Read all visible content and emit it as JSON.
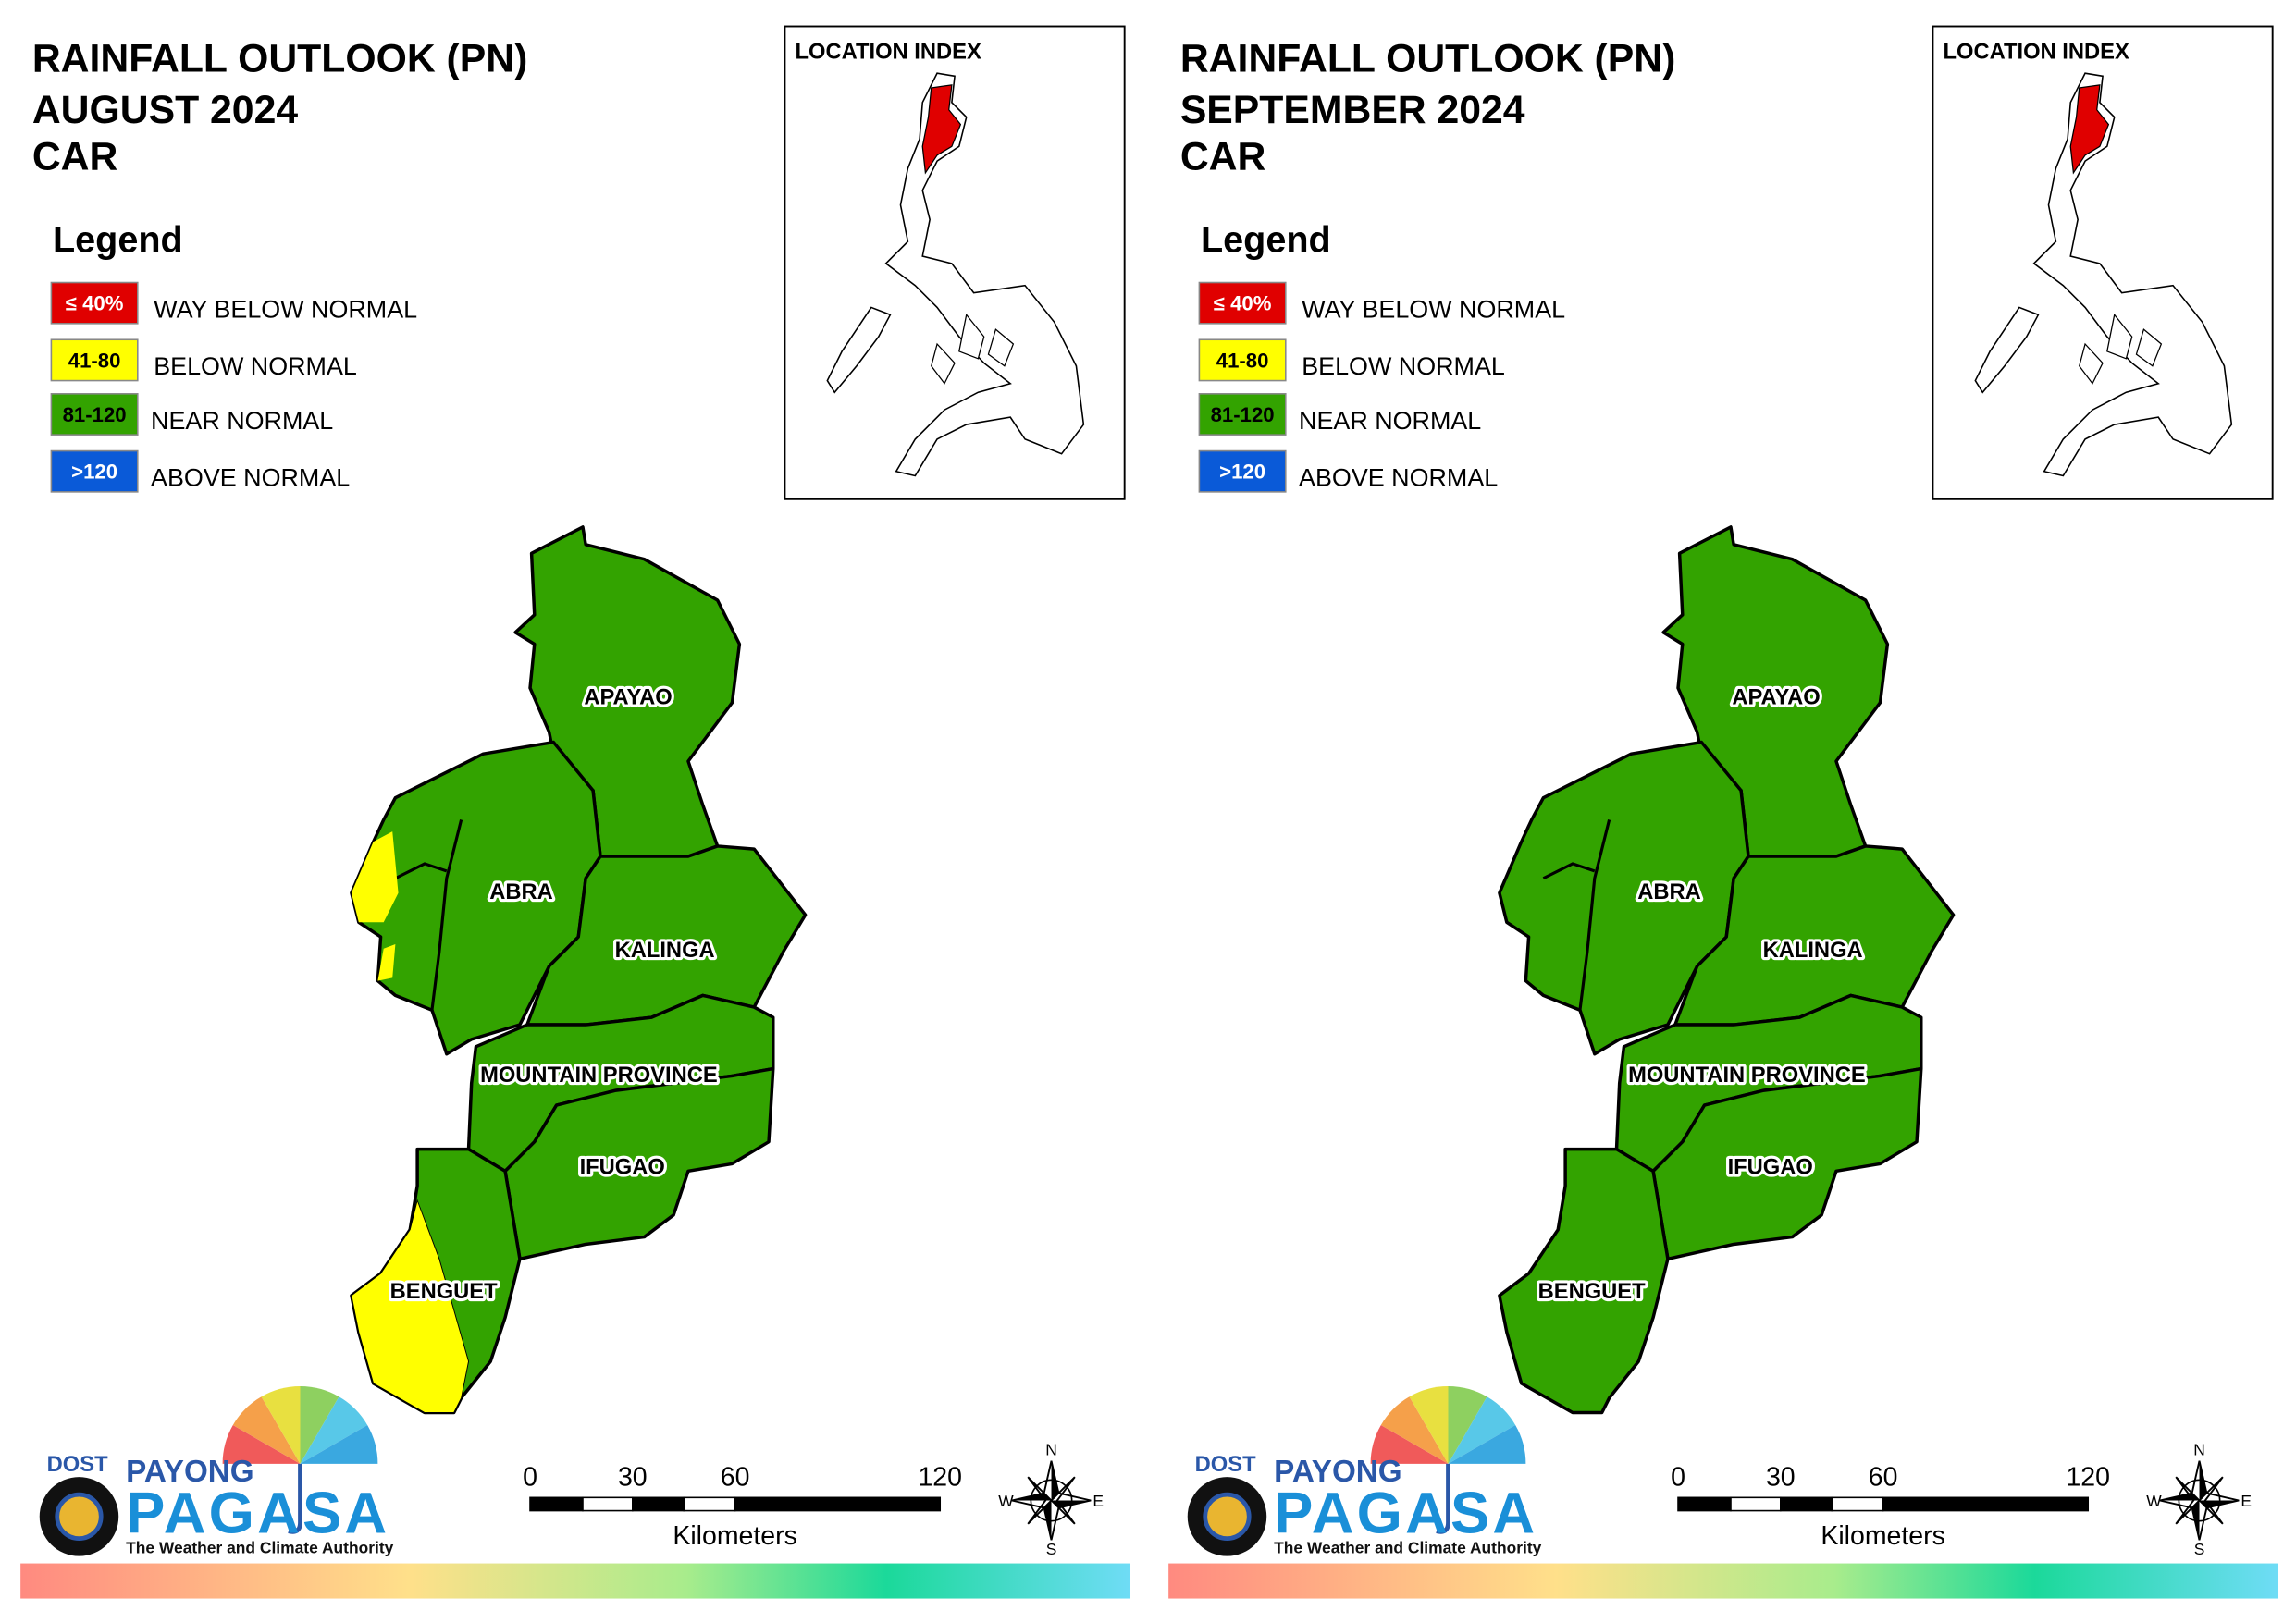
{
  "panels": [
    {
      "title": [
        "RAINFALL OUTLOOK (PN)",
        "AUGUST 2024",
        "CAR"
      ],
      "legend": {
        "title": "Legend",
        "items": [
          {
            "range": "≤ 40%",
            "label": "WAY BELOW NORMAL",
            "color": "#e00000",
            "text_color": "#ffffff"
          },
          {
            "range": "41-80",
            "label": "BELOW NORMAL",
            "color": "#ffff00",
            "text_color": "#000000"
          },
          {
            "range": "81-120",
            "label": "NEAR NORMAL",
            "color": "#33a300",
            "text_color": "#000000"
          },
          {
            "range": ">120",
            "label": "ABOVE NORMAL",
            "color": "#0a5ad8",
            "text_color": "#ffffff"
          }
        ]
      },
      "location_index": "LOCATION INDEX",
      "provinces": [
        "APAYAO",
        "ABRA",
        "KALINGA",
        "MOUNTAIN PROVINCE",
        "IFUGAO",
        "BENGUET"
      ],
      "scale": {
        "ticks": [
          0,
          30,
          60,
          120
        ],
        "unit": "Kilometers"
      },
      "compass": [
        "N",
        "E",
        "S",
        "W"
      ],
      "logo": {
        "agency": "DOST",
        "program": "PAYONG",
        "name": "PAGASA",
        "tagline": "The Weather and Climate Authority"
      }
    },
    {
      "title": [
        "RAINFALL OUTLOOK (PN)",
        "SEPTEMBER 2024",
        "CAR"
      ],
      "legend": {
        "title": "Legend",
        "items": [
          {
            "range": "≤ 40%",
            "label": "WAY BELOW NORMAL",
            "color": "#e00000",
            "text_color": "#ffffff"
          },
          {
            "range": "41-80",
            "label": "BELOW NORMAL",
            "color": "#ffff00",
            "text_color": "#000000"
          },
          {
            "range": "81-120",
            "label": "NEAR NORMAL",
            "color": "#33a300",
            "text_color": "#000000"
          },
          {
            "range": ">120",
            "label": "ABOVE NORMAL",
            "color": "#0a5ad8",
            "text_color": "#ffffff"
          }
        ]
      },
      "location_index": "LOCATION INDEX",
      "provinces": [
        "APAYAO",
        "ABRA",
        "KALINGA",
        "MOUNTAIN PROVINCE",
        "IFUGAO",
        "BENGUET"
      ],
      "scale": {
        "ticks": [
          0,
          30,
          60,
          120
        ],
        "unit": "Kilometers"
      },
      "compass": [
        "N",
        "E",
        "S",
        "W"
      ],
      "logo": {
        "agency": "DOST",
        "program": "PAYONG",
        "name": "PAGASA",
        "tagline": "The Weather and Climate Authority"
      }
    }
  ]
}
